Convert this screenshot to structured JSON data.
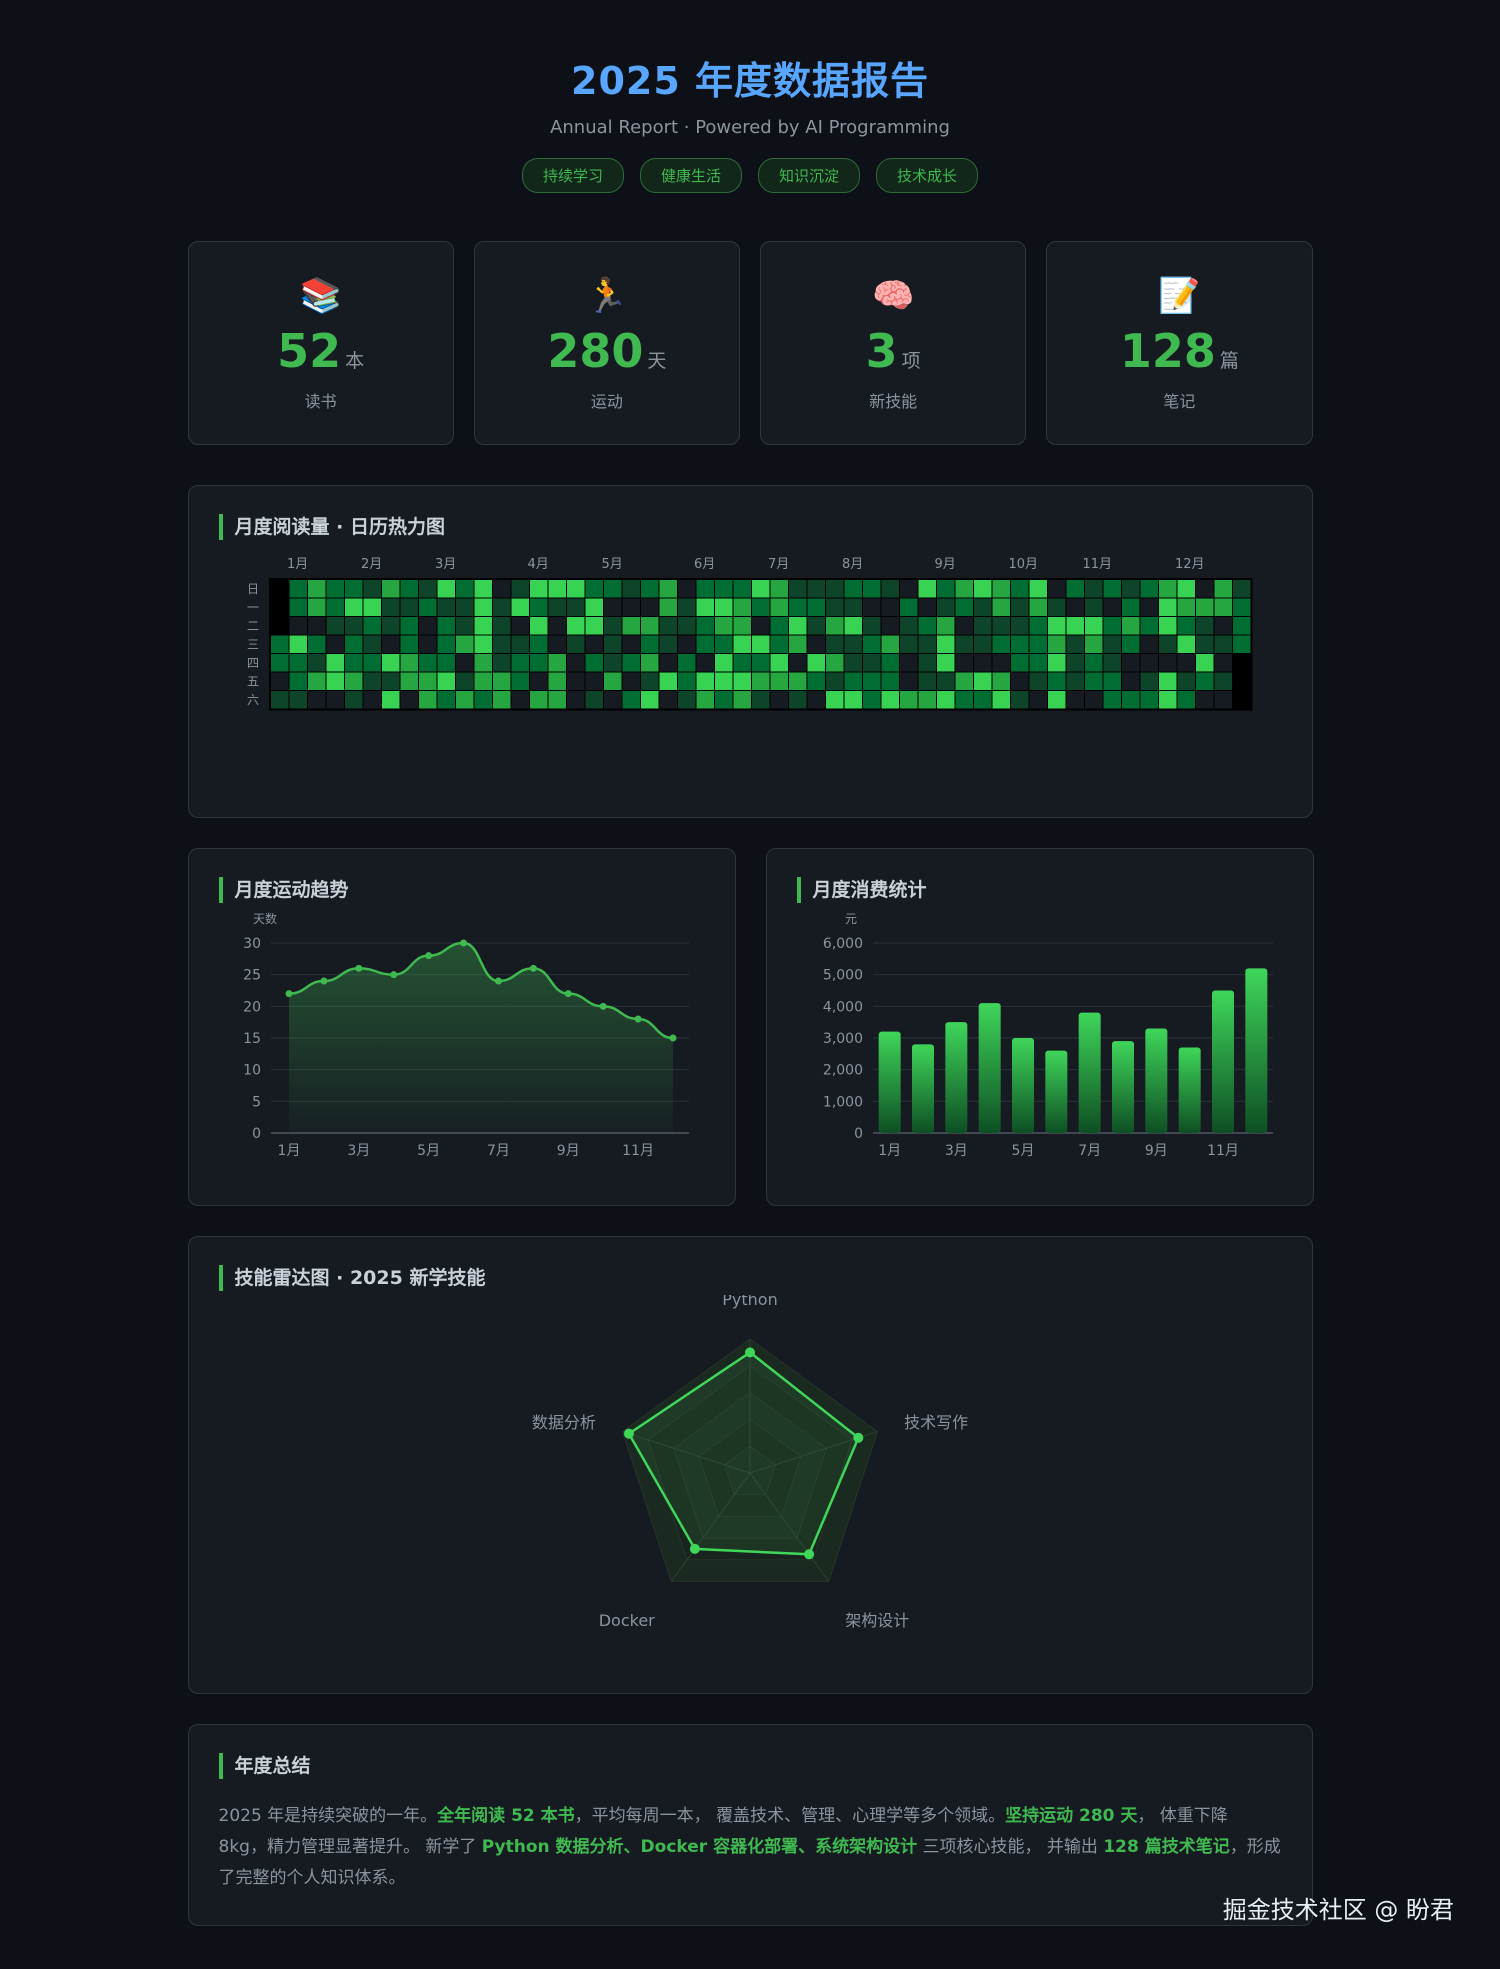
{
  "header": {
    "title": "2025 年度数据报告",
    "subtitle": "Annual Report · Powered by AI Programming",
    "tags": [
      "持续学习",
      "健康生活",
      "知识沉淀",
      "技术成长"
    ]
  },
  "stats": [
    {
      "icon": "📚",
      "icon_name": "books-icon",
      "value": "52",
      "unit": "本",
      "label": "读书"
    },
    {
      "icon": "🏃",
      "icon_name": "runner-icon",
      "value": "280",
      "unit": "天",
      "label": "运动"
    },
    {
      "icon": "🧠",
      "icon_name": "brain-icon",
      "value": "3",
      "unit": "项",
      "label": "新技能"
    },
    {
      "icon": "📝",
      "icon_name": "memo-icon",
      "value": "128",
      "unit": "篇",
      "label": "笔记"
    }
  ],
  "heatmap": {
    "title": "月度阅读量 · 日历热力图",
    "months": [
      "1月",
      "2月",
      "3月",
      "4月",
      "5月",
      "6月",
      "7月",
      "8月",
      "9月",
      "10月",
      "11月",
      "12月"
    ],
    "weekdays": [
      "日",
      "一",
      "二",
      "三",
      "四",
      "五",
      "六"
    ],
    "colors": [
      "#161b22",
      "#0e4429",
      "#006d32",
      "#26a641",
      "#39d353"
    ]
  },
  "exercise": {
    "title": "月度运动趋势",
    "chart_data": {
      "type": "line",
      "ylabel": "天数",
      "x": [
        "1月",
        "2月",
        "3月",
        "4月",
        "5月",
        "6月",
        "7月",
        "8月",
        "9月",
        "10月",
        "11月",
        "12月"
      ],
      "x_tick_labels": [
        "1月",
        "3月",
        "5月",
        "7月",
        "9月",
        "11月"
      ],
      "values": [
        22,
        24,
        26,
        25,
        28,
        30,
        24,
        26,
        22,
        20,
        18,
        15
      ],
      "ylim": [
        0,
        30
      ],
      "yticks": [
        0,
        5,
        10,
        15,
        20,
        25,
        30
      ]
    }
  },
  "spending": {
    "title": "月度消费统计",
    "chart_data": {
      "type": "bar",
      "ylabel": "元",
      "categories": [
        "1月",
        "2月",
        "3月",
        "4月",
        "5月",
        "6月",
        "7月",
        "8月",
        "9月",
        "10月",
        "11月",
        "12月"
      ],
      "x_tick_labels": [
        "1月",
        "3月",
        "5月",
        "7月",
        "9月",
        "11月"
      ],
      "values": [
        3200,
        2800,
        3500,
        4100,
        3000,
        2600,
        3800,
        2900,
        3300,
        2700,
        4500,
        5200
      ],
      "ylim": [
        0,
        6000
      ],
      "yticks": [
        "0",
        "1,000",
        "2,000",
        "3,000",
        "4,000",
        "5,000",
        "6,000"
      ]
    }
  },
  "skills": {
    "title": "技能雷达图 · 2025 新学技能",
    "chart_data": {
      "type": "radar",
      "axes": [
        "Python",
        "技术写作",
        "架构设计",
        "Docker",
        "数据分析"
      ],
      "values": [
        90,
        85,
        75,
        70,
        95
      ],
      "max": 100
    }
  },
  "summary": {
    "title": "年度总结",
    "parts": [
      {
        "t": "2025 年是持续突破的一年。",
        "h": false
      },
      {
        "t": "全年阅读 52 本书",
        "h": true
      },
      {
        "t": "，平均每周一本， 覆盖技术、管理、心理学等多个领域。",
        "h": false
      },
      {
        "t": "坚持运动 280 天",
        "h": true
      },
      {
        "t": "， 体重下降 8kg，精力管理显著提升。 新学了 ",
        "h": false
      },
      {
        "t": "Python 数据分析、Docker 容器化部署、系统架构设计",
        "h": true
      },
      {
        "t": " 三项核心技能， 并输出 ",
        "h": false
      },
      {
        "t": "128 篇技术笔记",
        "h": true
      },
      {
        "t": "，形成了完整的个人知识体系。",
        "h": false
      }
    ]
  },
  "watermark": "掘金技术社区 @ 盼君"
}
